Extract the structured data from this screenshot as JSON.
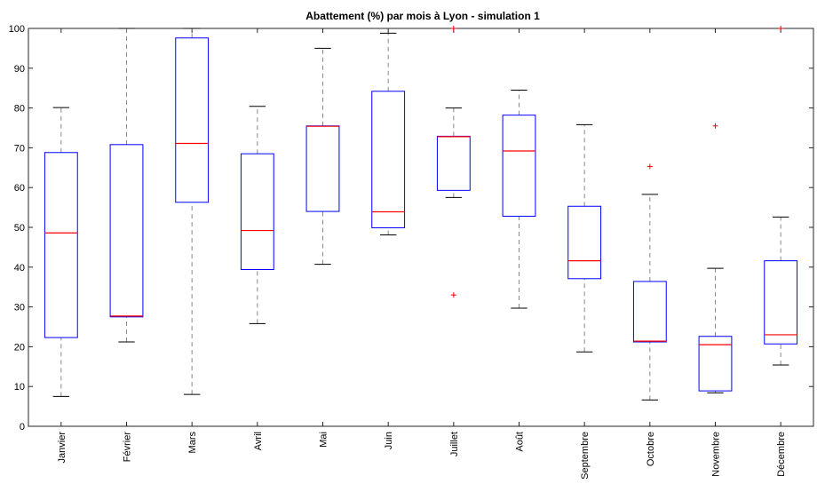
{
  "chart_data": {
    "type": "box",
    "title": "Abattement (%) par mois à Lyon - simulation 1",
    "xlabel": "",
    "ylabel": "",
    "ylim": [
      0,
      100
    ],
    "yticks": [
      0,
      10,
      20,
      30,
      40,
      50,
      60,
      70,
      80,
      90,
      100
    ],
    "grid": false,
    "categories": [
      "Janvier",
      "Février",
      "Mars",
      "Avril",
      "Mai",
      "Juin",
      "Juillet",
      "Août",
      "Septembre",
      "Octobre",
      "Novembre",
      "Décembre"
    ],
    "boxes": [
      {
        "min": 7.5,
        "q1": 22.3,
        "median": 48.6,
        "q3": 68.8,
        "max": 80.1,
        "outliers": []
      },
      {
        "min": 21.2,
        "q1": 27.5,
        "median": 27.7,
        "q3": 70.8,
        "max": 100,
        "outliers": []
      },
      {
        "min": 8.0,
        "q1": 56.3,
        "median": 71.1,
        "q3": 97.6,
        "max": 100,
        "outliers": []
      },
      {
        "min": 25.8,
        "q1": 39.4,
        "median": 49.2,
        "q3": 68.5,
        "max": 80.4,
        "outliers": []
      },
      {
        "min": 40.7,
        "q1": 54.0,
        "median": 75.4,
        "q3": 75.5,
        "max": 95.0,
        "outliers": []
      },
      {
        "min": 48.1,
        "q1": 49.9,
        "median": 53.9,
        "q3": 84.2,
        "max": 98.8,
        "outliers": []
      },
      {
        "min": 57.5,
        "q1": 59.3,
        "median": 72.8,
        "q3": 72.9,
        "max": 80.0,
        "outliers": [
          33.0,
          100
        ]
      },
      {
        "min": 29.7,
        "q1": 52.8,
        "median": 69.2,
        "q3": 78.2,
        "max": 84.5,
        "outliers": []
      },
      {
        "min": 18.7,
        "q1": 37.1,
        "median": 41.6,
        "q3": 55.3,
        "max": 75.8,
        "outliers": []
      },
      {
        "min": 6.6,
        "q1": 21.2,
        "median": 21.4,
        "q3": 36.4,
        "max": 58.3,
        "outliers": [
          65.3
        ]
      },
      {
        "min": 8.4,
        "q1": 8.9,
        "median": 20.5,
        "q3": 22.6,
        "max": 39.7,
        "outliers": [
          75.5
        ]
      },
      {
        "min": 15.4,
        "q1": 20.7,
        "median": 23.0,
        "q3": 41.6,
        "max": 52.6,
        "outliers": [
          100
        ]
      }
    ],
    "colors": {
      "box": "#0000ff",
      "median": "#ff0000",
      "whisker": "#888888",
      "cap": "#000000",
      "outlier": "#ff0000",
      "axis": "#262626"
    }
  }
}
